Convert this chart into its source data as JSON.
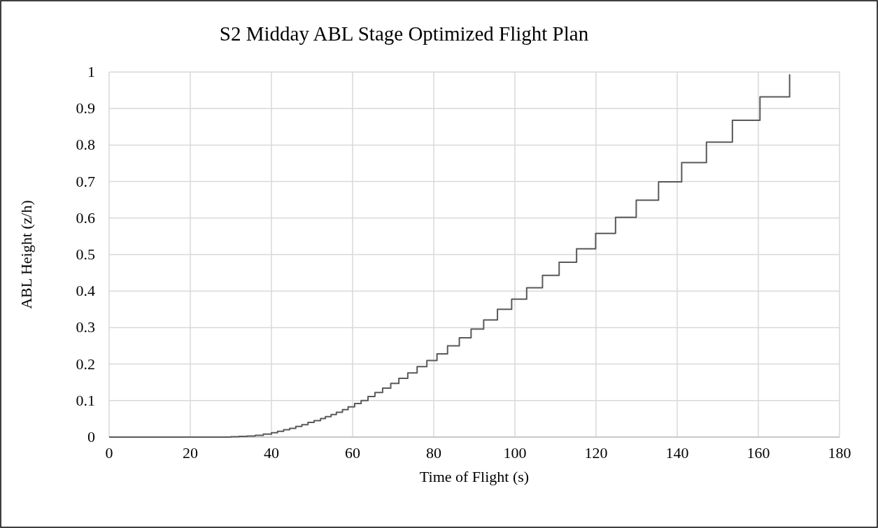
{
  "chart_data": {
    "type": "step",
    "title": "S2 Midday ABL Stage Optimized Flight Plan",
    "xlabel": "Time of Flight (s)",
    "ylabel": "ABL Height (z/h)",
    "xlim": [
      0,
      180
    ],
    "xticks": [
      0,
      20,
      40,
      60,
      80,
      100,
      120,
      140,
      160,
      180
    ],
    "ylim": [
      0,
      1
    ],
    "yticks": [
      0,
      0.1,
      0.2,
      0.3,
      0.4,
      0.5,
      0.6,
      0.7,
      0.8,
      0.9,
      1
    ],
    "grid": true,
    "series": [
      {
        "color": "#595959",
        "x": [
          0,
          20,
          25,
          30,
          32,
          34,
          36,
          38,
          40,
          41.5,
          43,
          44.5,
          46,
          47.5,
          49,
          50.5,
          52.1,
          53.3,
          54.7,
          56.0,
          57.5,
          58.9,
          60.5,
          62.1,
          63.8,
          65.5,
          67.4,
          69.4,
          71.4,
          73.6,
          75.9,
          78.3,
          80.8,
          83.4,
          86.3,
          89.2,
          92.3,
          95.7,
          99.2,
          102.9,
          106.8,
          110.9,
          115.2,
          119.9,
          124.8,
          129.9,
          135.4,
          141.1,
          147.2,
          153.6,
          160.4,
          167.7
        ],
        "values": [
          0,
          0,
          0,
          0.001,
          0.002,
          0.003,
          0.005,
          0.008,
          0.012,
          0.016,
          0.02,
          0.024,
          0.029,
          0.034,
          0.04,
          0.045,
          0.051,
          0.056,
          0.062,
          0.068,
          0.075,
          0.083,
          0.092,
          0.1,
          0.111,
          0.122,
          0.134,
          0.147,
          0.161,
          0.176,
          0.193,
          0.21,
          0.228,
          0.25,
          0.272,
          0.296,
          0.321,
          0.35,
          0.378,
          0.409,
          0.443,
          0.479,
          0.516,
          0.558,
          0.602,
          0.649,
          0.699,
          0.752,
          0.808,
          0.868,
          0.932,
          0.994
        ]
      }
    ]
  }
}
